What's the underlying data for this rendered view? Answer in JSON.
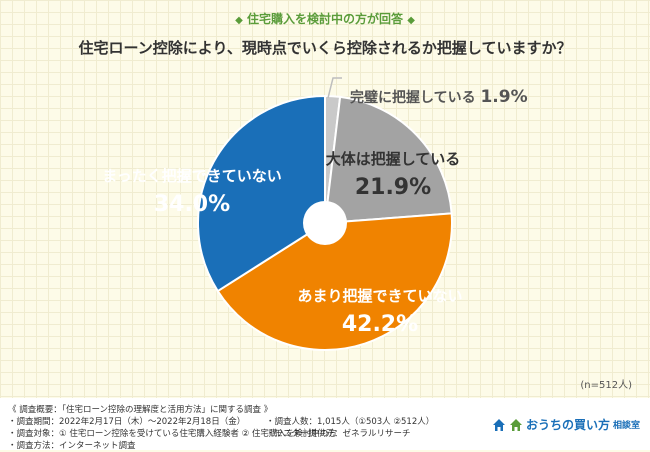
{
  "header": {
    "subtitle": "住宅購入を検討中の方が回答",
    "title": "住宅ローン控除により、現時点でいくら控除されるか把握していますか？"
  },
  "chart_data": {
    "type": "pie",
    "title": "住宅ローン控除により、現時点でいくら控除されるか把握していますか？",
    "categories": [
      "完璧に把握している",
      "大体は把握している",
      "あまり把握できていない",
      "まったく把握できていない"
    ],
    "values": [
      1.9,
      21.9,
      42.2,
      34.0
    ],
    "value_labels": [
      "1.9%",
      "21.9%",
      "42.2%",
      "34.0%"
    ],
    "colors": [
      "#c9c9c9",
      "#a3a3a3",
      "#f08300",
      "#1a6fb8"
    ],
    "sample": "(n=512人)"
  },
  "footer": {
    "left_lines": [
      "《 調査概要：「住宅ローン控除の理解度と活用方法」に関する調査 》",
      "・調査期間：2022年2月17日（木）～2022年2月18日（金）",
      "・調査対象：① 住宅ローン控除を受けている住宅購入経験者 ② 住宅購入を検討中の方",
      "・調査方法：インターネット調査"
    ],
    "right_lines": [
      "・調査人数：1,015人（①503人 ②512人）",
      "・モニター提供元：ゼネラルリサーチ"
    ],
    "logo_main": "おうちの買い方",
    "logo_small": "相談室"
  },
  "icons": {
    "diamond": "diamond-icon",
    "house": "house-icon"
  }
}
